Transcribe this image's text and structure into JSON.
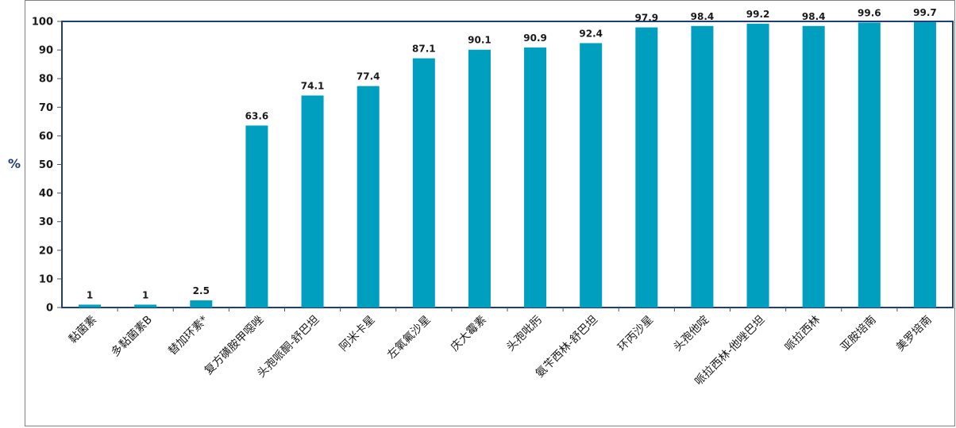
{
  "chart_data": {
    "type": "bar",
    "categories": [
      "黏菌素",
      "多黏菌素B",
      "替加环素*",
      "复方磺胺甲噁唑",
      "头孢哌酮-舒巴坦",
      "阿米卡星",
      "左氧氟沙星",
      "庆大霉素",
      "头孢吡肟",
      "氨苄西林-舒巴坦",
      "环丙沙星",
      "头孢他啶",
      "哌拉西林-他唑巴坦",
      "哌拉西林",
      "亚胺培南",
      "美罗培南"
    ],
    "values": [
      1,
      1,
      2.5,
      63.6,
      74.1,
      77.4,
      87.1,
      90.1,
      90.9,
      92.4,
      97.9,
      98.4,
      99.2,
      98.4,
      99.6,
      99.7
    ],
    "data_labels": [
      "1",
      "1",
      "2.5",
      "63.6",
      "74.1",
      "77.4",
      "87.1",
      "90.1",
      "90.9",
      "92.4",
      "97.9",
      "98.4",
      "99.2",
      "98.4",
      "99.6",
      "99.7"
    ],
    "ylabel": "%",
    "ylim": [
      0,
      100
    ],
    "yticks": [
      "0",
      "10",
      "20",
      "30",
      "40",
      "50",
      "60",
      "70",
      "80",
      "90",
      "100"
    ],
    "bar_color": "#009fbf",
    "axis_color": "#1f3d7a",
    "grid": false
  }
}
